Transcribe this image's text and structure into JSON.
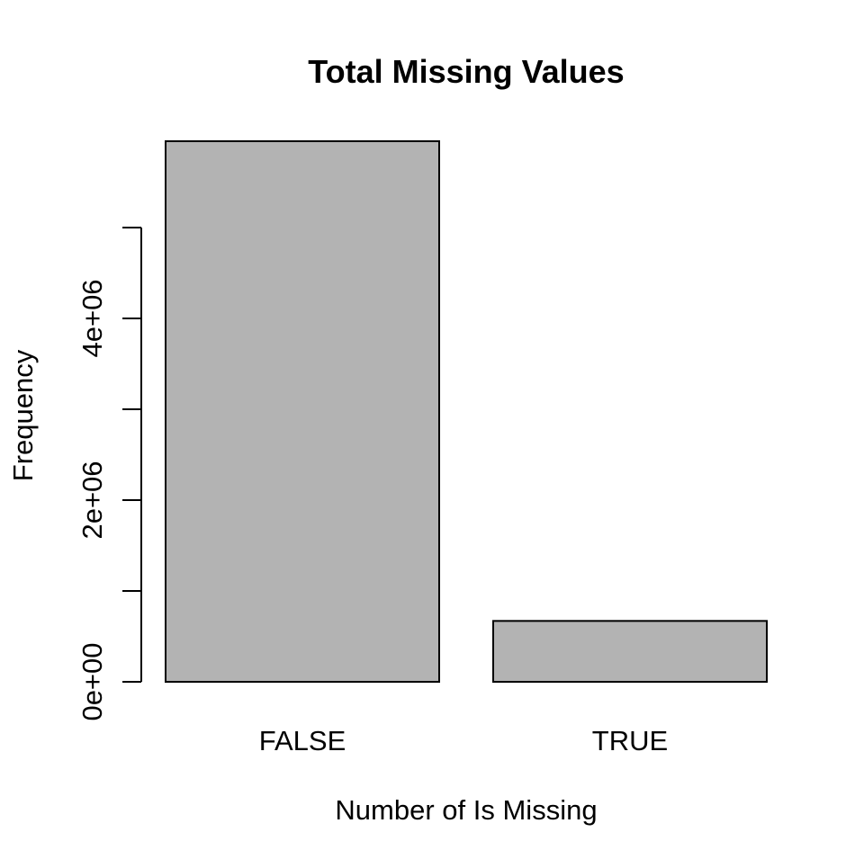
{
  "chart_data": {
    "type": "bar",
    "title": "Total Missing Values",
    "xlabel": "Number of Is Missing",
    "ylabel": "Frequency",
    "categories": [
      "FALSE",
      "TRUE"
    ],
    "values": [
      5950000,
      670000
    ],
    "ylim": [
      0,
      5950000
    ],
    "yticks": [
      0,
      1000000,
      2000000,
      3000000,
      4000000,
      5000000
    ],
    "ytick_labels": [
      "0e+00",
      "",
      "2e+06",
      "",
      "4e+06",
      ""
    ],
    "grid": false,
    "legend": "none",
    "colors": {
      "bar_fill": "#b3b3b3",
      "bar_stroke": "#000000",
      "axis": "#000000",
      "text": "#000000"
    }
  }
}
